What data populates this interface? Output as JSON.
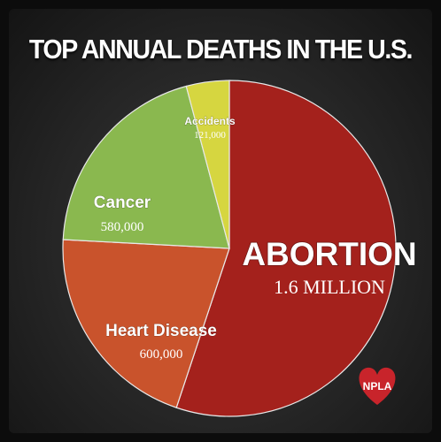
{
  "title": "TOP ANNUAL DEATHS IN THE U.S.",
  "logo_text": "NPLA",
  "colors": {
    "abortion": "#a4211c",
    "heart_disease": "#c9532c",
    "cancer": "#8ab84f",
    "accidents": "#d6d640",
    "logo_heart": "#c8242b"
  },
  "chart_data": {
    "type": "pie",
    "title": "TOP ANNUAL DEATHS IN THE U.S.",
    "slices": [
      {
        "name": "ABORTION",
        "value": 1600000,
        "value_label": "1.6 MILLION"
      },
      {
        "name": "Heart Disease",
        "value": 600000,
        "value_label": "600,000"
      },
      {
        "name": "Cancer",
        "value": 580000,
        "value_label": "580,000"
      },
      {
        "name": "Accidents",
        "value": 121000,
        "value_label": "121,000"
      }
    ]
  }
}
